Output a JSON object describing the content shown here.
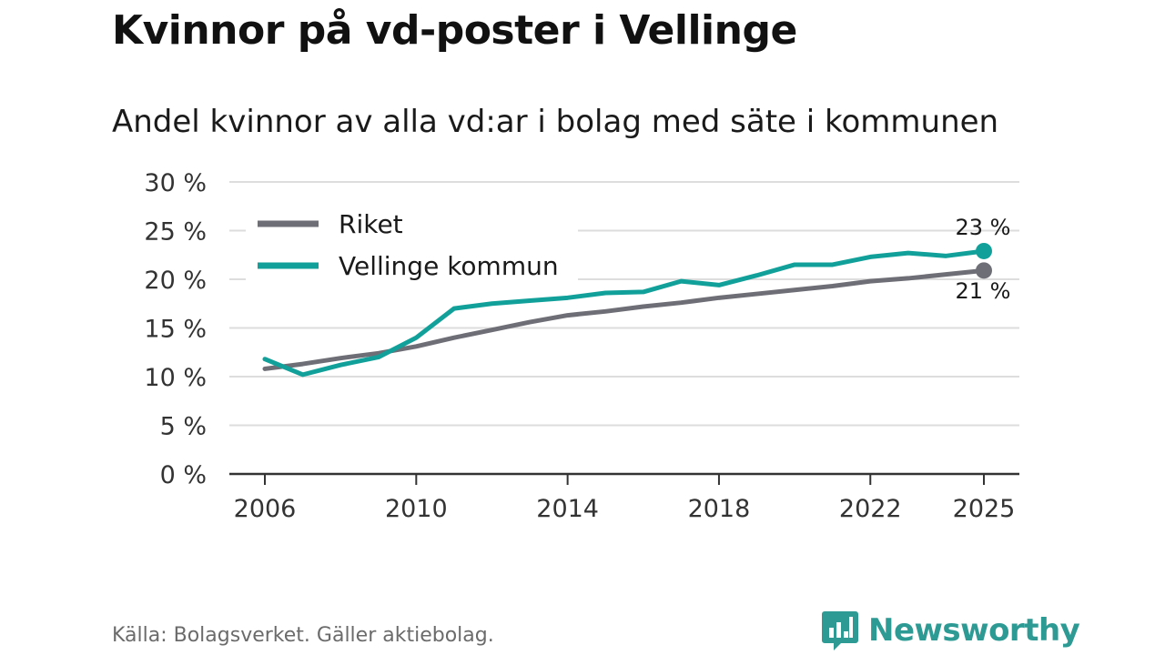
{
  "title": "Kvinnor på vd-poster i Vellinge",
  "subtitle": "Andel kvinnor av alla vd:ar i bolag med säte i kommunen",
  "source": "Källa: Bolagsverket. Gäller aktiebolag.",
  "brand": "Newsworthy",
  "colors": {
    "riket": "#6e6e76",
    "vellinge": "#12a19a",
    "grid": "#dddddd",
    "axis": "#333333"
  },
  "chart_data": {
    "type": "line",
    "x": [
      2006,
      2007,
      2008,
      2009,
      2010,
      2011,
      2012,
      2013,
      2014,
      2015,
      2016,
      2017,
      2018,
      2019,
      2020,
      2021,
      2022,
      2023,
      2024,
      2025
    ],
    "series": [
      {
        "name": "Riket",
        "values": [
          10.8,
          11.3,
          11.9,
          12.4,
          13.1,
          14.0,
          14.8,
          15.6,
          16.3,
          16.7,
          17.2,
          17.6,
          18.1,
          18.5,
          18.9,
          19.3,
          19.8,
          20.1,
          20.5,
          20.9
        ]
      },
      {
        "name": "Vellinge kommun",
        "values": [
          11.8,
          10.2,
          11.2,
          12.0,
          14.0,
          17.0,
          17.5,
          17.8,
          18.1,
          18.6,
          18.7,
          19.8,
          19.4,
          20.4,
          21.5,
          21.5,
          22.3,
          22.7,
          22.4,
          22.9
        ]
      }
    ],
    "yticks": [
      "0 %",
      "5 %",
      "10 %",
      "15 %",
      "20 %",
      "25 %",
      "30 %"
    ],
    "xticks": [
      "2006",
      "2010",
      "2014",
      "2018",
      "2022",
      "2025"
    ],
    "ylim": [
      0,
      30
    ],
    "xlabel": "",
    "ylabel": "",
    "legend": [
      "Riket",
      "Vellinge kommun"
    ],
    "end_labels": {
      "vellinge": "23 %",
      "riket": "21 %"
    },
    "grid": true,
    "legend_position": "top-left"
  }
}
